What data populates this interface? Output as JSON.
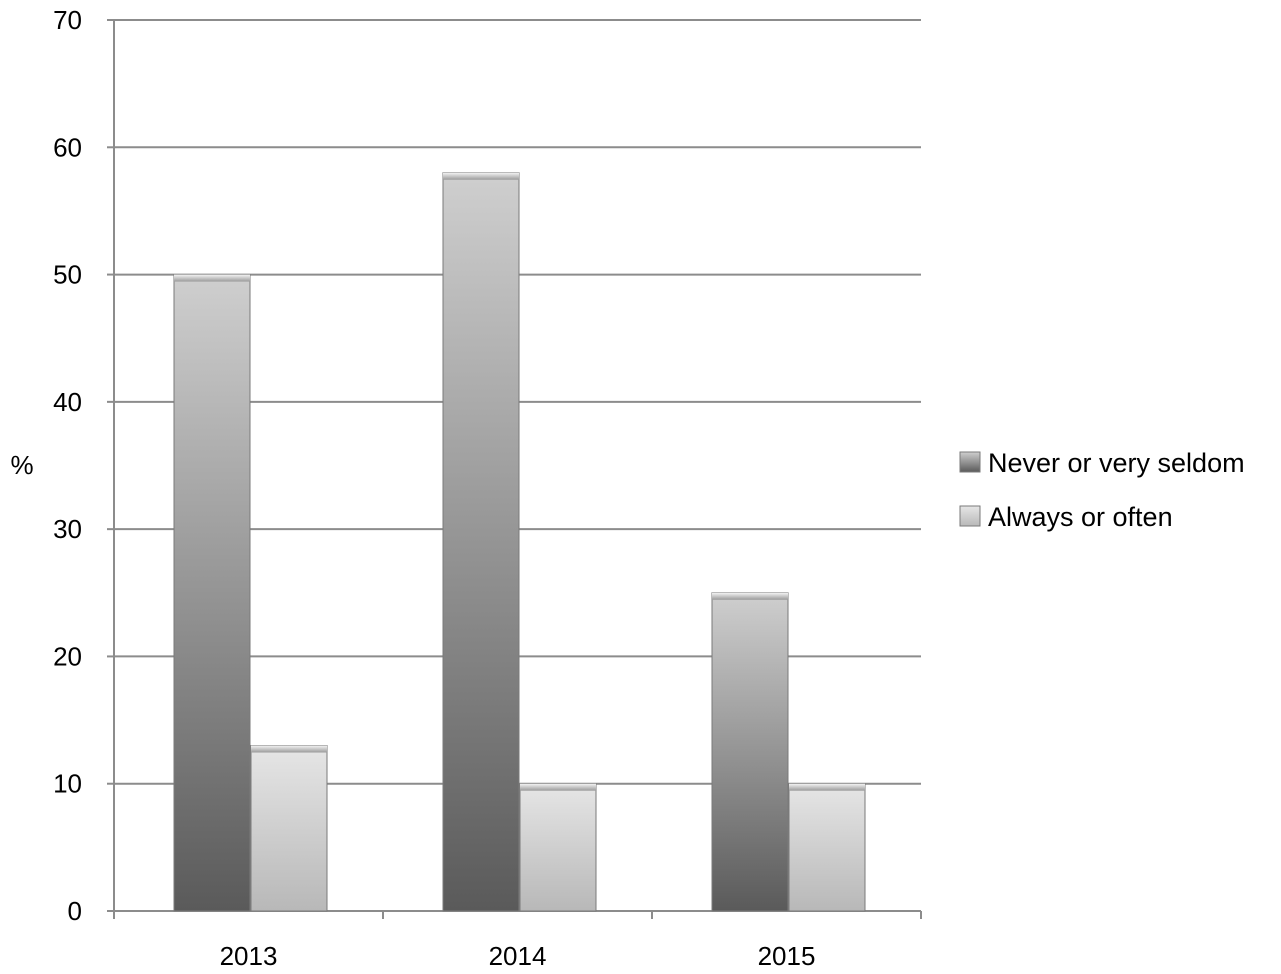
{
  "chart_data": {
    "type": "bar",
    "categories": [
      "2013",
      "2014",
      "2015"
    ],
    "series": [
      {
        "name": "Never or very seldom",
        "values": [
          50,
          58,
          25
        ]
      },
      {
        "name": "Always or often",
        "values": [
          13,
          10,
          10
        ]
      }
    ],
    "title": "",
    "xlabel": "",
    "ylabel": "%",
    "ylim": [
      0,
      70
    ],
    "yticks": [
      0,
      10,
      20,
      30,
      40,
      50,
      60,
      70
    ],
    "grid": true,
    "legend_position": "right"
  },
  "colors": {
    "series_dark": "#6b6b6b",
    "series_light": "#d2d2d2",
    "grid": "#8c8c8c",
    "axis": "#8c8c8c"
  }
}
